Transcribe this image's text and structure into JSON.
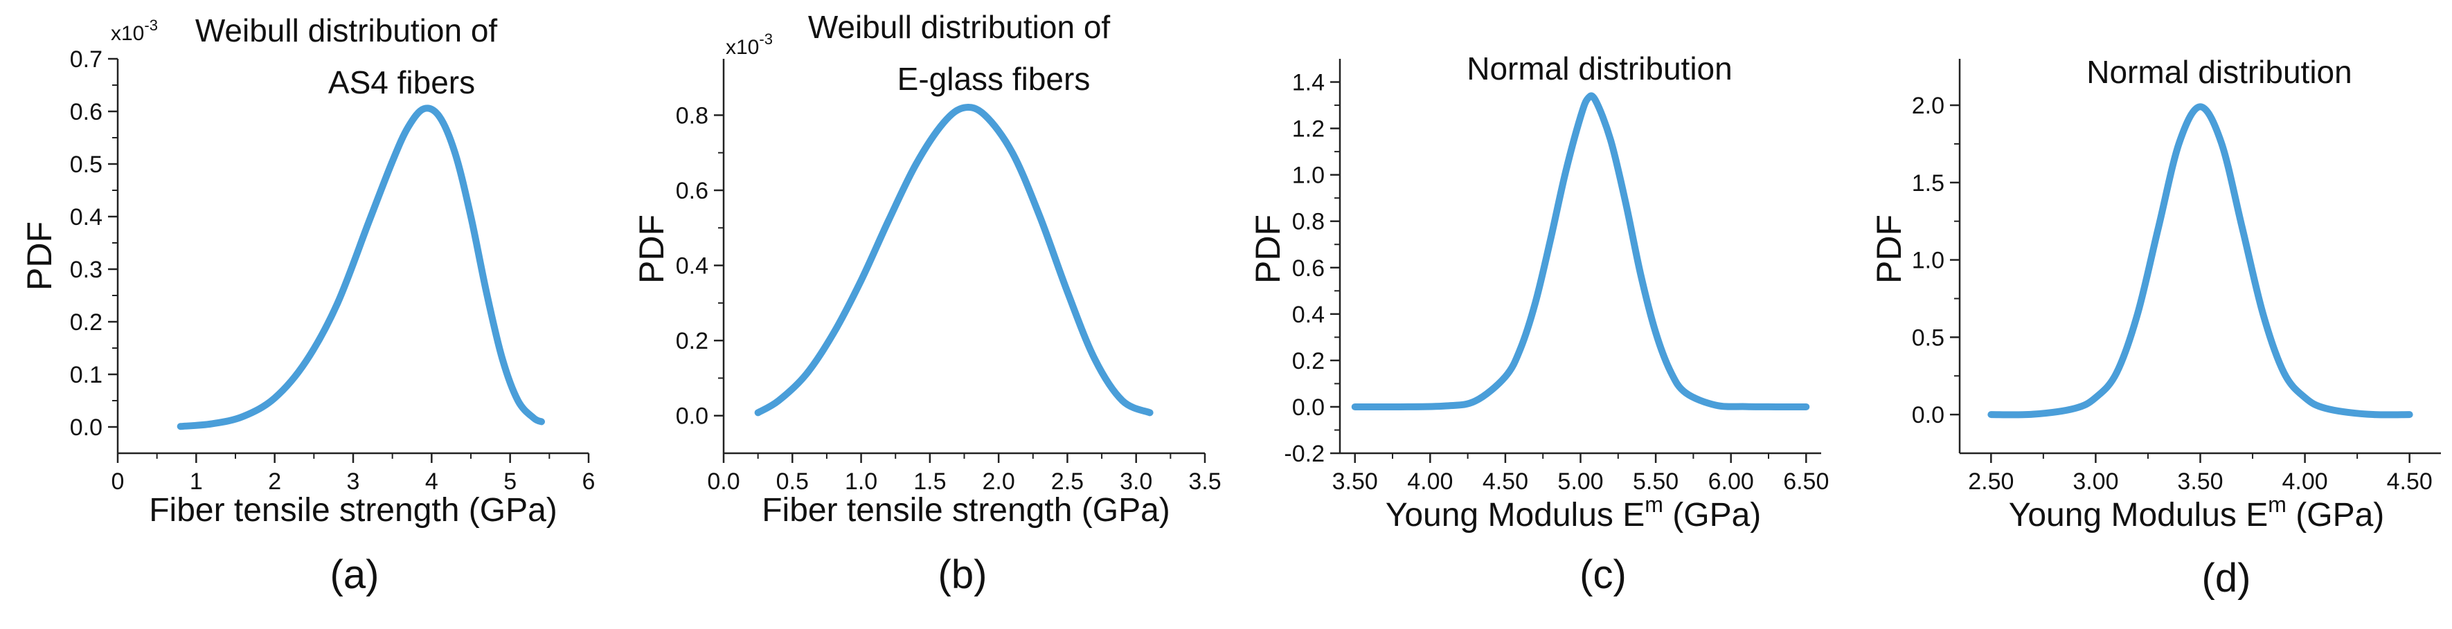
{
  "figure": {
    "accent": "#4a9ed9"
  },
  "chart_data": [
    {
      "id": "a",
      "type": "line",
      "panel_label": "(a)",
      "title_lines": [
        "Weibull distribution of",
        "AS4 fibers"
      ],
      "xlabel": "Fiber tensile strength (GPa)",
      "ylabel": "PDF",
      "y_multiplier_base": "x10",
      "y_multiplier_exp": "-3",
      "xlim": [
        0,
        6
      ],
      "ylim": [
        -0.05,
        0.7
      ],
      "xticks": [
        0,
        1,
        2,
        3,
        4,
        5,
        6
      ],
      "xtick_labels": [
        "0",
        "1",
        "2",
        "3",
        "4",
        "5",
        "6"
      ],
      "yticks": [
        0.0,
        0.1,
        0.2,
        0.3,
        0.4,
        0.5,
        0.6,
        0.7
      ],
      "ytick_labels": [
        "0.0",
        "0.1",
        "0.2",
        "0.3",
        "0.4",
        "0.5",
        "0.6",
        "0.7"
      ],
      "series": [
        {
          "x": [
            0.8,
            1.2,
            1.6,
            2.0,
            2.4,
            2.8,
            3.2,
            3.5,
            3.7,
            3.9,
            4.1,
            4.3,
            4.5,
            4.7,
            4.9,
            5.1,
            5.3,
            5.4
          ],
          "y": [
            0.001,
            0.006,
            0.02,
            0.055,
            0.125,
            0.235,
            0.39,
            0.505,
            0.57,
            0.605,
            0.59,
            0.52,
            0.4,
            0.255,
            0.13,
            0.05,
            0.017,
            0.01
          ]
        }
      ]
    },
    {
      "id": "b",
      "type": "line",
      "panel_label": "(b)",
      "title_lines": [
        "Weibull distribution of",
        "E-glass fibers"
      ],
      "xlabel": "Fiber tensile strength (GPa)",
      "ylabel": "PDF",
      "y_multiplier_base": "x10",
      "y_multiplier_exp": "-3",
      "xlim": [
        0.0,
        3.5
      ],
      "ylim": [
        -0.1,
        0.95
      ],
      "xticks": [
        0.0,
        0.5,
        1.0,
        1.5,
        2.0,
        2.5,
        3.0,
        3.5
      ],
      "xtick_labels": [
        "0.0",
        "0.5",
        "1.0",
        "1.5",
        "2.0",
        "2.5",
        "3.0",
        "3.5"
      ],
      "yticks": [
        0.0,
        0.2,
        0.4,
        0.6,
        0.8
      ],
      "ytick_labels": [
        "0.0",
        "0.2",
        "0.4",
        "0.6",
        "0.8"
      ],
      "series": [
        {
          "x": [
            0.25,
            0.4,
            0.6,
            0.8,
            1.0,
            1.2,
            1.4,
            1.6,
            1.75,
            1.9,
            2.1,
            2.3,
            2.5,
            2.7,
            2.9,
            3.1
          ],
          "y": [
            0.008,
            0.04,
            0.11,
            0.22,
            0.36,
            0.52,
            0.67,
            0.78,
            0.82,
            0.8,
            0.7,
            0.53,
            0.33,
            0.15,
            0.04,
            0.008
          ]
        }
      ]
    },
    {
      "id": "c",
      "type": "line",
      "panel_label": "(c)",
      "title_lines": [
        "Normal distribution"
      ],
      "xlabel_main": "Young Modulus E",
      "xlabel_sup": "m",
      "xlabel_tail": " (GPa)",
      "ylabel": "PDF",
      "xlim": [
        3.4,
        6.6
      ],
      "ylim": [
        -0.2,
        1.5
      ],
      "xticks": [
        3.5,
        4.0,
        4.5,
        5.0,
        5.5,
        6.0,
        6.5
      ],
      "xtick_labels": [
        "3.50",
        "4.00",
        "4.50",
        "5.00",
        "5.50",
        "6.00",
        "6.50"
      ],
      "yticks": [
        -0.2,
        0.0,
        0.2,
        0.4,
        0.6,
        0.8,
        1.0,
        1.2,
        1.4
      ],
      "ytick_labels": [
        "-0.2",
        "0.0",
        "0.2",
        "0.4",
        "0.6",
        "0.8",
        "1.0",
        "1.2",
        "1.4"
      ],
      "series": [
        {
          "x": [
            3.5,
            3.8,
            4.1,
            4.3,
            4.5,
            4.6,
            4.7,
            4.8,
            4.9,
            5.0,
            5.05,
            5.1,
            5.2,
            5.3,
            5.4,
            5.5,
            5.6,
            5.7,
            5.9,
            6.1,
            6.3,
            6.5
          ],
          "y": [
            0.0,
            0.0,
            0.004,
            0.025,
            0.13,
            0.25,
            0.45,
            0.72,
            1.01,
            1.25,
            1.33,
            1.32,
            1.15,
            0.88,
            0.57,
            0.32,
            0.15,
            0.06,
            0.007,
            0.001,
            0.0,
            0.0
          ]
        }
      ]
    },
    {
      "id": "d",
      "type": "line",
      "panel_label": "(d)",
      "title_lines": [
        "Normal distribution"
      ],
      "xlabel_main": "Young Modulus E",
      "xlabel_sup": "m",
      "xlabel_tail": " (GPa)",
      "ylabel": "PDF",
      "xlim": [
        2.35,
        4.65
      ],
      "ylim": [
        -0.25,
        2.3
      ],
      "xticks": [
        2.5,
        3.0,
        3.5,
        4.0,
        4.5
      ],
      "xtick_labels": [
        "2.50",
        "3.00",
        "3.50",
        "4.00",
        "4.50"
      ],
      "yticks": [
        0.0,
        0.5,
        1.0,
        1.5,
        2.0
      ],
      "ytick_labels": [
        "0.0",
        "0.5",
        "1.0",
        "1.5",
        "2.0"
      ],
      "series": [
        {
          "x": [
            2.5,
            2.7,
            2.9,
            3.0,
            3.1,
            3.2,
            3.3,
            3.4,
            3.5,
            3.6,
            3.7,
            3.8,
            3.9,
            4.0,
            4.1,
            4.3,
            4.5
          ],
          "y": [
            0.0,
            0.002,
            0.04,
            0.11,
            0.27,
            0.65,
            1.21,
            1.76,
            1.99,
            1.76,
            1.21,
            0.65,
            0.27,
            0.11,
            0.04,
            0.002,
            0.0
          ]
        }
      ]
    }
  ]
}
